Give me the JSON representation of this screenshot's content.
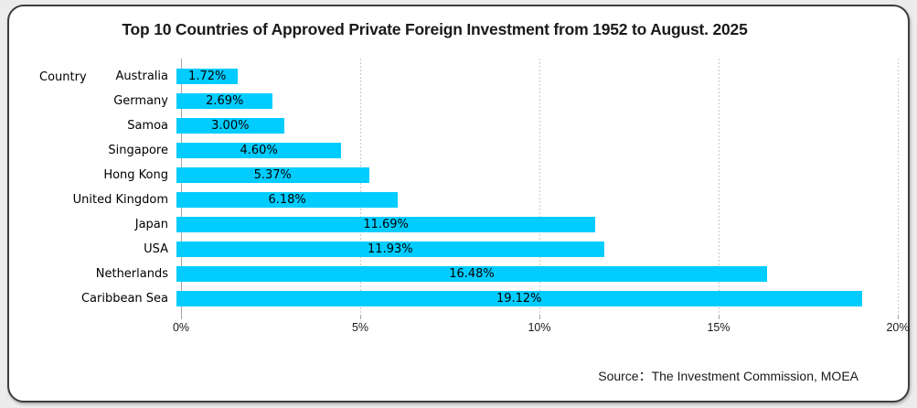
{
  "page": {
    "title": "Top 10 Countries of Approved Private Foreign Investment from 1952 to August. 2025",
    "axis_header": "Country",
    "source": "Source：The Investment Commission, MOEA"
  },
  "colors": {
    "bar": "#00CCFF",
    "card_border": "#3d3d3d",
    "page_background": "#ececec",
    "gridline": "#c9c9c9",
    "axis": "#a6a6a6",
    "text": "#000000"
  },
  "chart_data": {
    "type": "bar",
    "orientation": "horizontal",
    "title": "Top 10 Countries of Approved Private Foreign Investment from 1952 to August. 2025",
    "ylabel": "Country",
    "xlabel": "",
    "categories": [
      "Australia",
      "Germany",
      "Samoa",
      "Singapore",
      "Hong Kong",
      "United Kingdom",
      "Japan",
      "USA",
      "Netherlands",
      "Caribbean Sea"
    ],
    "values": [
      1.72,
      2.69,
      3.0,
      4.6,
      5.37,
      6.18,
      11.69,
      11.93,
      16.48,
      19.12
    ],
    "value_labels": [
      "1.72%",
      "2.69%",
      "3.00%",
      "4.60%",
      "5.37%",
      "6.18%",
      "11.69%",
      "11.93%",
      "16.48%",
      "19.12%"
    ],
    "xlim": [
      0,
      20
    ],
    "x_ticks": [
      "0%",
      "5%",
      "10%",
      "15%",
      "20%"
    ],
    "grid": "vertical-dotted",
    "legend": "none",
    "source": "Source：The Investment Commission, MOEA"
  }
}
